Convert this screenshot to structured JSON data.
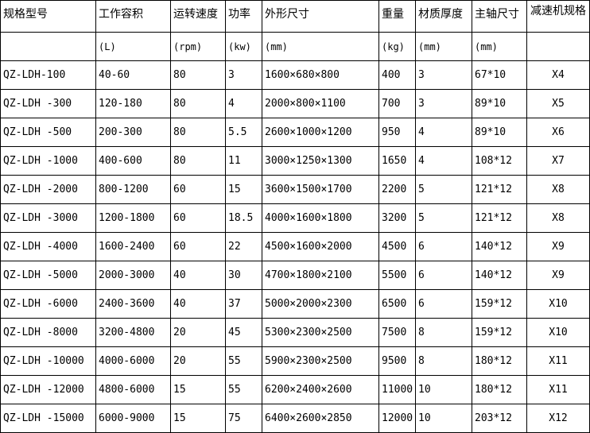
{
  "table": {
    "header": [
      "规格型号",
      "工作容积",
      "运转速度",
      "功率",
      "外形尺寸",
      "重量",
      "材质厚度",
      "主轴尺寸",
      "减速机规格"
    ],
    "units": [
      "(L)",
      "(rpm)",
      "(kw)",
      "(mm)",
      "(kg)",
      "(mm)",
      "(mm)"
    ],
    "rows": [
      [
        "QZ-LDH-100",
        "40-60",
        "80",
        "3",
        "1600×680×800",
        "400",
        "3",
        "67*10",
        "X4"
      ],
      [
        "QZ-LDH -300",
        "120-180",
        "80",
        "4",
        "2000×800×1100",
        "700",
        "3",
        "89*10",
        "X5"
      ],
      [
        "QZ-LDH -500",
        "200-300",
        "80",
        "5.5",
        "2600×1000×1200",
        "950",
        "4",
        "89*10",
        "X6"
      ],
      [
        "QZ-LDH -1000",
        "400-600",
        "80",
        "11",
        "3000×1250×1300",
        "1650",
        "4",
        "108*12",
        "X7"
      ],
      [
        "QZ-LDH -2000",
        "800-1200",
        "60",
        "15",
        "3600×1500×1700",
        "2200",
        "5",
        "121*12",
        "X8"
      ],
      [
        "QZ-LDH -3000",
        "1200-1800",
        "60",
        "18.5",
        "4000×1600×1800",
        "3200",
        "5",
        "121*12",
        "X8"
      ],
      [
        "QZ-LDH -4000",
        "1600-2400",
        "60",
        "22",
        "4500×1600×2000",
        "4500",
        "6",
        "140*12",
        "X9"
      ],
      [
        "QZ-LDH -5000",
        "2000-3000",
        "40",
        "30",
        "4700×1800×2100",
        "5500",
        "6",
        "140*12",
        "X9"
      ],
      [
        "QZ-LDH -6000",
        "2400-3600",
        "40",
        "37",
        "5000×2000×2300",
        "6500",
        "6",
        "159*12",
        "X10"
      ],
      [
        "QZ-LDH -8000",
        "3200-4800",
        "20",
        "45",
        "5300×2300×2500",
        "7500",
        "8",
        "159*12",
        "X10"
      ],
      [
        "QZ-LDH -10000",
        "4000-6000",
        "20",
        "55",
        "5900×2300×2500",
        "9500",
        "8",
        "180*12",
        "X11"
      ],
      [
        "QZ-LDH -12000",
        "4800-6000",
        "15",
        "55",
        "6200×2400×2600",
        "11000",
        "10",
        "180*12",
        "X11"
      ],
      [
        "QZ-LDH -15000",
        "6000-9000",
        "15",
        "75",
        "6400×2600×2850",
        "12000",
        "10",
        "203*12",
        "X12"
      ]
    ]
  }
}
